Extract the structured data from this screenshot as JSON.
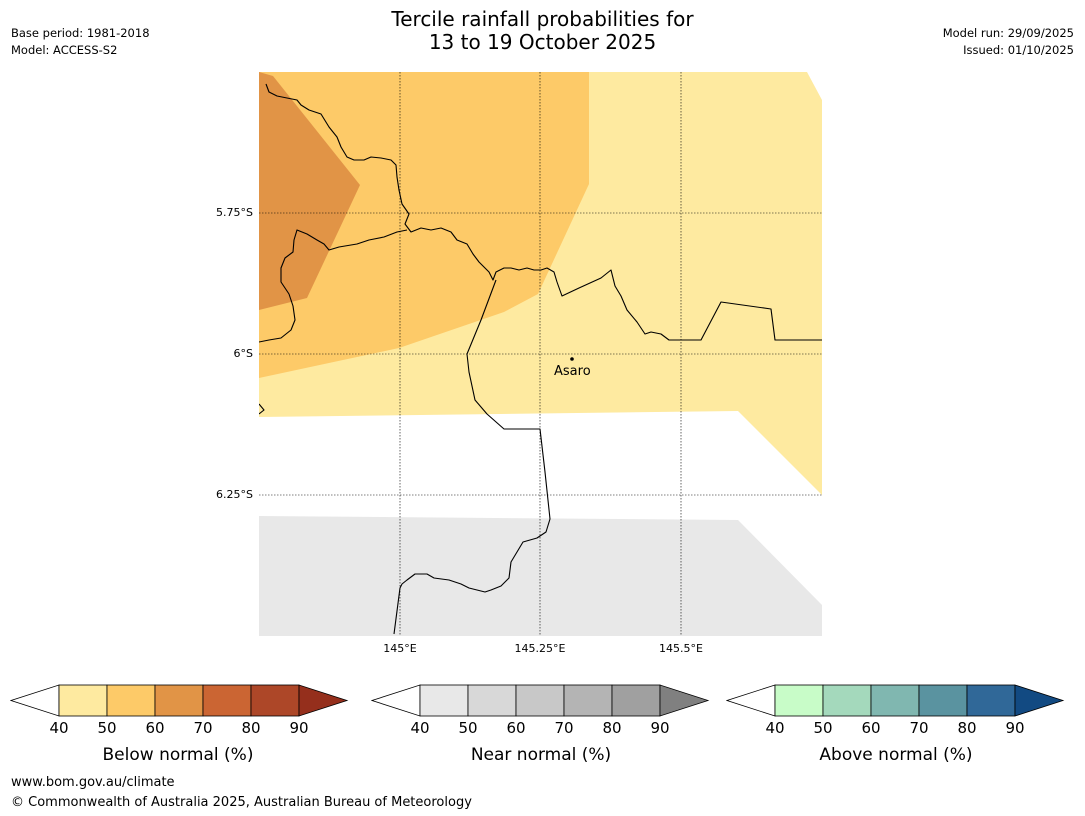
{
  "header": {
    "title_line1": "Tercile rainfall probabilities for",
    "title_line2": "13 to 19 October 2025",
    "base_period": "Base period: 1981-2018",
    "model": "Model: ACCESS-S2",
    "model_run": "Model run: 29/09/2025",
    "issued": "Issued: 01/10/2025"
  },
  "map": {
    "lat_labels": [
      "5.75°S",
      "6°S",
      "6.25°S"
    ],
    "lon_labels": [
      "145°E",
      "145.25°E",
      "145.5°E"
    ],
    "place": "Asaro"
  },
  "legend": {
    "ticks": [
      "40",
      "50",
      "60",
      "70",
      "80",
      "90"
    ],
    "below": {
      "label": "Below normal (%)",
      "colors": [
        "#ffffff",
        "#feeaa0",
        "#fdca68",
        "#e19446",
        "#cb6533",
        "#ad4728",
        "#952f1c"
      ]
    },
    "near": {
      "label": "Near normal (%)",
      "colors": [
        "#ffffff",
        "#e8e8e8",
        "#d8d8d8",
        "#c8c8c8",
        "#b4b4b4",
        "#a0a0a0",
        "#808080"
      ]
    },
    "above": {
      "label": "Above normal (%)",
      "colors": [
        "#ffffff",
        "#c8fcc8",
        "#a4d9bc",
        "#80b7b0",
        "#5a93a0",
        "#306898",
        "#124a82"
      ]
    }
  },
  "footer": {
    "website": "www.bom.gov.au/climate",
    "copyright": "© Commonwealth of Australia 2025, Australian Bureau of Meteorology"
  }
}
